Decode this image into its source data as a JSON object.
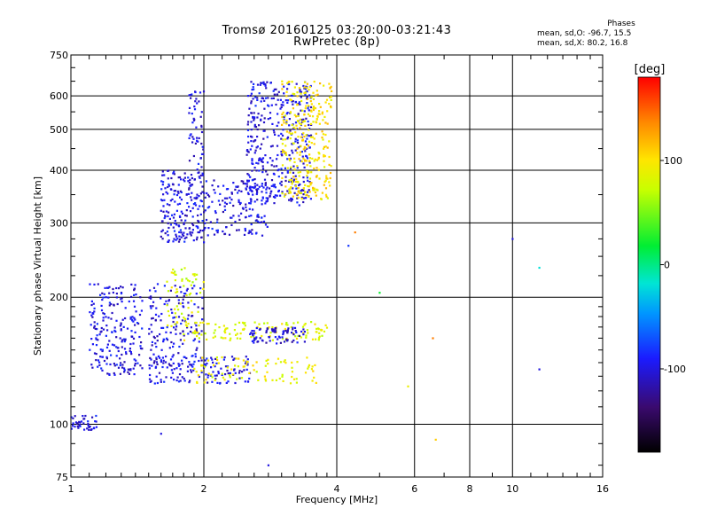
{
  "header": {
    "title": "Tromsø 20160125 03:20:00-03:21:43",
    "subtitle": "RwPretec (8p)"
  },
  "phase_box": {
    "heading": "Phases",
    "line_o": "mean, sd,O: -96.7, 15.5",
    "line_x": "mean, sd,X:  80.2, 16.8"
  },
  "colorbar": {
    "label": "[deg]",
    "ticks": [
      {
        "value": 100,
        "label": "100"
      },
      {
        "value": 0,
        "label": "0"
      },
      {
        "value": -100,
        "label": "-100"
      }
    ],
    "range": [
      -180,
      180
    ]
  },
  "chart_data": {
    "type": "scatter",
    "title": "Tromsø 20160125 03:20:00-03:21:43",
    "subtitle": "RwPretec (8p)",
    "xlabel": "Frequency [MHz]",
    "ylabel": "Stationary phase Virtual Height [km]",
    "x_scale": "log",
    "y_scale": "log",
    "xlim": [
      1,
      16
    ],
    "ylim": [
      75,
      750
    ],
    "x_ticks": [
      1,
      2,
      4,
      6,
      8,
      10,
      16
    ],
    "y_ticks": [
      75,
      100,
      200,
      300,
      400,
      500,
      600,
      750
    ],
    "grid": true,
    "color_scale": "phase [deg], -180 (black) to 180 (red)",
    "clusters": [
      {
        "name": "",
        "freq_range": [
          1.0,
          1.15
        ],
        "height_range": [
          97,
          105
        ],
        "phase": -100,
        "n": 40
      },
      {
        "name": "",
        "freq_range": [
          1.1,
          1.45
        ],
        "height_range": [
          130,
          215
        ],
        "phase": -100,
        "n": 220
      },
      {
        "name": "",
        "freq_range": [
          1.5,
          2.0
        ],
        "height_range": [
          135,
          215
        ],
        "phase": -100,
        "n": 160
      },
      {
        "name": "",
        "freq_range": [
          1.6,
          2.0
        ],
        "height_range": [
          270,
          400
        ],
        "phase": -100,
        "n": 200
      },
      {
        "name": "",
        "freq_range": [
          1.85,
          2.0
        ],
        "height_range": [
          400,
          620
        ],
        "phase": -100,
        "n": 50
      },
      {
        "name": "",
        "freq_range": [
          2.0,
          2.8
        ],
        "height_range": [
          280,
          380
        ],
        "phase": -100,
        "n": 150
      },
      {
        "name": "",
        "freq_range": [
          2.5,
          3.5
        ],
        "height_range": [
          330,
          650
        ],
        "phase": -100,
        "n": 400
      },
      {
        "name": "",
        "freq_range": [
          3.0,
          3.9
        ],
        "height_range": [
          340,
          650
        ],
        "phase": 100,
        "n": 300
      },
      {
        "name": "",
        "freq_range": [
          1.65,
          2.0
        ],
        "height_range": [
          170,
          235
        ],
        "phase": 80,
        "n": 60
      },
      {
        "name": "",
        "freq_range": [
          1.8,
          3.8
        ],
        "height_range": [
          158,
          175
        ],
        "phase": 85,
        "n": 120
      },
      {
        "name": "",
        "freq_range": [
          2.5,
          3.4
        ],
        "height_range": [
          155,
          170
        ],
        "phase": -105,
        "n": 80
      },
      {
        "name": "",
        "freq_range": [
          1.5,
          2.6
        ],
        "height_range": [
          125,
          145
        ],
        "phase": -100,
        "n": 120
      },
      {
        "name": "",
        "freq_range": [
          1.9,
          3.6
        ],
        "height_range": [
          125,
          145
        ],
        "phase": 90,
        "n": 90
      }
    ],
    "outliers": [
      {
        "x": 4.4,
        "y": 285,
        "phase": 140
      },
      {
        "x": 4.25,
        "y": 265,
        "phase": -80
      },
      {
        "x": 5.0,
        "y": 205,
        "phase": 20
      },
      {
        "x": 5.8,
        "y": 123,
        "phase": 90
      },
      {
        "x": 6.6,
        "y": 160,
        "phase": 140
      },
      {
        "x": 6.7,
        "y": 92,
        "phase": 110
      },
      {
        "x": 10.0,
        "y": 275,
        "phase": -100
      },
      {
        "x": 11.5,
        "y": 235,
        "phase": -20
      },
      {
        "x": 11.5,
        "y": 135,
        "phase": -100
      },
      {
        "x": 2.8,
        "y": 80,
        "phase": -100
      },
      {
        "x": 1.6,
        "y": 95,
        "phase": -100
      }
    ]
  }
}
